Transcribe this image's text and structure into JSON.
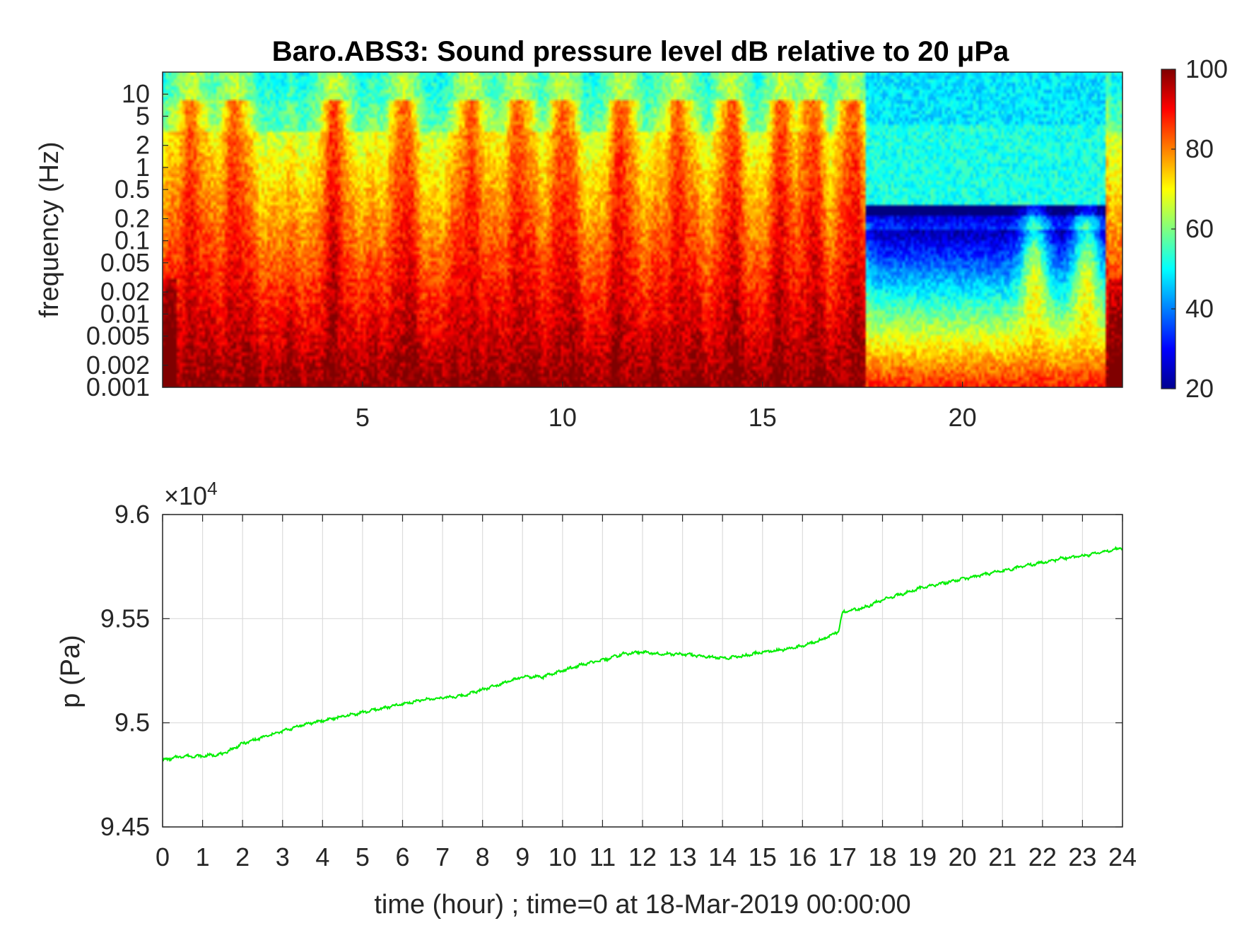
{
  "chart_data": [
    {
      "type": "heatmap",
      "title": "Baro.ABS3: Sound pressure level dB relative to 20 μPa",
      "ylabel": "frequency (Hz)",
      "xlabel": "",
      "x_ticks": [
        "5",
        "10",
        "15",
        "20"
      ],
      "x_tick_values": [
        5,
        10,
        15,
        20
      ],
      "xlim": [
        0,
        24
      ],
      "y_scale": "log",
      "y_ticks": [
        "10",
        "5",
        "2",
        "1",
        "0.5",
        "0.2",
        "0.1",
        "0.05",
        "0.02",
        "0.01",
        "0.005",
        "0.002",
        "0.001"
      ],
      "y_tick_values": [
        10,
        5,
        2,
        1,
        0.5,
        0.2,
        0.1,
        0.05,
        0.02,
        0.01,
        0.005,
        0.002,
        0.001
      ],
      "ylim": [
        0.001,
        20
      ],
      "colorbar": {
        "ticks": [
          "100",
          "80",
          "60",
          "40",
          "20"
        ],
        "tick_values": [
          100,
          80,
          60,
          40,
          20
        ],
        "range": [
          20,
          100
        ],
        "colormap": "jet"
      },
      "quiet_period_hours": [
        17.6,
        23.6
      ],
      "loud_bursts_hours": [
        0.7,
        1.8,
        4.3,
        6.0,
        7.7,
        8.9,
        10.0,
        11.5,
        12.9,
        14.2,
        15.5,
        16.2,
        17.2,
        21.8,
        23.1
      ]
    },
    {
      "type": "line",
      "title": "",
      "xlabel": "time (hour) ; time=0 at 18-Mar-2019 00:00:00",
      "ylabel": "p (Pa)",
      "exponent_label": "×10",
      "exponent_power": "4",
      "xlim": [
        0,
        24
      ],
      "ylim": [
        94500,
        96000
      ],
      "x_ticks": [
        "0",
        "1",
        "2",
        "3",
        "4",
        "5",
        "6",
        "7",
        "8",
        "9",
        "10",
        "11",
        "12",
        "13",
        "14",
        "15",
        "16",
        "17",
        "18",
        "19",
        "20",
        "21",
        "22",
        "23",
        "24"
      ],
      "y_ticks": [
        "9.6",
        "9.55",
        "9.5",
        "9.45"
      ],
      "y_tick_values": [
        96000,
        95500,
        95000,
        94500
      ],
      "grid": true,
      "series": [
        {
          "color": "#00ee00",
          "x": [
            0,
            0.5,
            1,
            1.5,
            2,
            2.5,
            3,
            3.5,
            4,
            4.5,
            5,
            5.5,
            6,
            6.5,
            7,
            7.5,
            8,
            8.5,
            9,
            9.5,
            10,
            10.5,
            11,
            11.5,
            12,
            12.5,
            13,
            13.5,
            14,
            14.5,
            15,
            15.5,
            16,
            16.5,
            16.9,
            17.0,
            17.5,
            18,
            18.5,
            19,
            19.5,
            20,
            20.5,
            21,
            21.5,
            22,
            22.5,
            23,
            23.5,
            24
          ],
          "values": [
            94820,
            94840,
            94840,
            94850,
            94900,
            94930,
            94960,
            94990,
            95010,
            95030,
            95050,
            95070,
            95090,
            95110,
            95120,
            95130,
            95160,
            95190,
            95220,
            95220,
            95250,
            95280,
            95300,
            95330,
            95340,
            95330,
            95330,
            95320,
            95310,
            95320,
            95340,
            95350,
            95370,
            95400,
            95440,
            95530,
            95550,
            95590,
            95620,
            95650,
            95670,
            95690,
            95710,
            95730,
            95750,
            95770,
            95790,
            95800,
            95820,
            95840
          ]
        }
      ]
    }
  ]
}
